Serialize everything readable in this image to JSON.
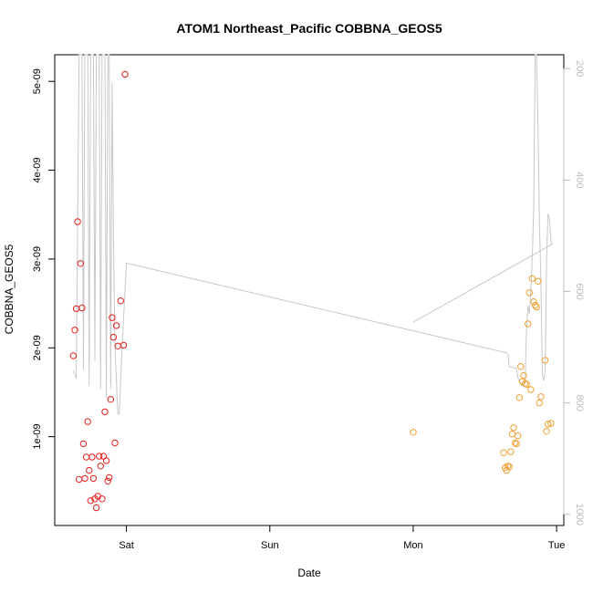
{
  "chart_data": {
    "type": "scatter",
    "title": "ATOM1 Northeast_Pacific COBBNA_GEOS5",
    "xlabel": "Date",
    "ylabel": "COBBNA_GEOS5",
    "x_ticks": [
      {
        "label": "Sat",
        "value": 0
      },
      {
        "label": "Sun",
        "value": 1
      },
      {
        "label": "Mon",
        "value": 2
      },
      {
        "label": "Tue",
        "value": 3
      }
    ],
    "xlim": [
      -0.5,
      3.05
    ],
    "ylim": [
      0,
      5.3e-09
    ],
    "y_ticks": [
      {
        "label": "1e-09",
        "value": 1e-09
      },
      {
        "label": "2e-09",
        "value": 2e-09
      },
      {
        "label": "3e-09",
        "value": 3e-09
      },
      {
        "label": "4e-09",
        "value": 4e-09
      },
      {
        "label": "5e-09",
        "value": 5e-09
      }
    ],
    "y2_ticks": [
      {
        "label": "200",
        "value": 200
      },
      {
        "label": "400",
        "value": 400
      },
      {
        "label": "600",
        "value": 600
      },
      {
        "label": "800",
        "value": 800
      },
      {
        "label": "1000",
        "value": 1000
      }
    ],
    "y2lim": [
      1020,
      175
    ],
    "colors": {
      "series_sat": "#e8201d",
      "series_tue": "#f0a030",
      "pressure": "#c8c8c8",
      "right_axis": "#bdbdbd"
    },
    "series": [
      {
        "color": "#e8201d",
        "points": [
          [
            -0.37,
            1.91e-09
          ],
          [
            -0.36,
            2.2e-09
          ],
          [
            -0.35,
            2.44e-09
          ],
          [
            -0.34,
            3.42e-09
          ],
          [
            -0.33,
            5.2e-10
          ],
          [
            -0.32,
            2.95e-09
          ],
          [
            -0.31,
            2.45e-09
          ],
          [
            -0.3,
            9.2e-10
          ],
          [
            -0.29,
            5.3e-10
          ],
          [
            -0.28,
            7.7e-10
          ],
          [
            -0.27,
            1.17e-09
          ],
          [
            -0.26,
            6.2e-10
          ],
          [
            -0.25,
            2.8e-10
          ],
          [
            -0.24,
            7.7e-10
          ],
          [
            -0.23,
            5.3e-10
          ],
          [
            -0.22,
            3e-10
          ],
          [
            -0.21,
            2e-10
          ],
          [
            -0.2,
            3.3e-10
          ],
          [
            -0.19,
            7.8e-10
          ],
          [
            -0.18,
            6.7e-10
          ],
          [
            -0.17,
            3e-10
          ],
          [
            -0.16,
            7.8e-10
          ],
          [
            -0.15,
            1.28e-09
          ],
          [
            -0.14,
            7.3e-10
          ],
          [
            -0.13,
            5e-10
          ],
          [
            -0.12,
            5.4e-10
          ],
          [
            -0.11,
            1.42e-09
          ],
          [
            -0.1,
            2.34e-09
          ],
          [
            -0.09,
            2.12e-09
          ],
          [
            -0.08,
            9.3e-10
          ],
          [
            -0.07,
            2.25e-09
          ],
          [
            -0.06,
            2.02e-09
          ],
          [
            -0.04,
            2.53e-09
          ],
          [
            -0.02,
            2.03e-09
          ],
          [
            -0.01,
            5.08e-09
          ]
        ]
      },
      {
        "color": "#f0a030",
        "points": [
          [
            2.0,
            1.05e-09
          ],
          [
            2.63,
            8.2e-10
          ],
          [
            2.64,
            6.5e-10
          ],
          [
            2.65,
            6.2e-10
          ],
          [
            2.66,
            6.7e-10
          ],
          [
            2.67,
            6.6e-10
          ],
          [
            2.68,
            8.3e-10
          ],
          [
            2.69,
            1.03e-09
          ],
          [
            2.7,
            1.1e-09
          ],
          [
            2.71,
            9.3e-10
          ],
          [
            2.72,
            9.2e-10
          ],
          [
            2.73,
            1.01e-09
          ],
          [
            2.74,
            1.44e-09
          ],
          [
            2.75,
            1.79e-09
          ],
          [
            2.76,
            1.62e-09
          ],
          [
            2.77,
            1.69e-09
          ],
          [
            2.78,
            1.6e-09
          ],
          [
            2.79,
            1.59e-09
          ],
          [
            2.8,
            2.27e-09
          ],
          [
            2.81,
            2.62e-09
          ],
          [
            2.82,
            1.53e-09
          ],
          [
            2.83,
            2.78e-09
          ],
          [
            2.84,
            2.52e-09
          ],
          [
            2.85,
            2.48e-09
          ],
          [
            2.86,
            2.46e-09
          ],
          [
            2.87,
            2.75e-09
          ],
          [
            2.88,
            1.38e-09
          ],
          [
            2.89,
            1.45e-09
          ],
          [
            2.92,
            1.86e-09
          ],
          [
            2.93,
            1.06e-09
          ],
          [
            2.94,
            1.14e-09
          ],
          [
            2.96,
            1.15e-09
          ]
        ]
      }
    ],
    "pressure_line": [
      [
        -0.37,
        742
      ],
      [
        -0.35,
        756
      ],
      [
        -0.33,
        175
      ],
      [
        -0.31,
        175
      ],
      [
        -0.3,
        740
      ],
      [
        -0.29,
        175
      ],
      [
        -0.27,
        175
      ],
      [
        -0.26,
        769
      ],
      [
        -0.25,
        175
      ],
      [
        -0.23,
        175
      ],
      [
        -0.22,
        725
      ],
      [
        -0.21,
        175
      ],
      [
        -0.19,
        175
      ],
      [
        -0.18,
        775
      ],
      [
        -0.17,
        175
      ],
      [
        -0.15,
        175
      ],
      [
        -0.14,
        790
      ],
      [
        -0.13,
        175
      ],
      [
        -0.12,
        175
      ],
      [
        -0.11,
        775
      ],
      [
        -0.1,
        225
      ],
      [
        -0.09,
        500
      ],
      [
        -0.08,
        700
      ],
      [
        -0.07,
        760
      ],
      [
        -0.06,
        820
      ],
      [
        -0.05,
        820
      ],
      [
        -0.04,
        760
      ],
      [
        -0.03,
        700
      ],
      [
        -0.02,
        650
      ],
      [
        0.0,
        549
      ],
      [
        2.65,
        710
      ],
      [
        2.66,
        712
      ],
      [
        2.67,
        735
      ],
      [
        2.72,
        738
      ],
      [
        2.73,
        755
      ],
      [
        2.76,
        770
      ],
      [
        2.78,
        760
      ],
      [
        2.79,
        670
      ],
      [
        2.8,
        625
      ],
      [
        2.81,
        640
      ],
      [
        2.82,
        600
      ],
      [
        2.83,
        540
      ],
      [
        2.84,
        450
      ],
      [
        2.85,
        175
      ],
      [
        2.86,
        175
      ],
      [
        2.87,
        300
      ],
      [
        2.88,
        480
      ],
      [
        2.89,
        580
      ],
      [
        2.9,
        750
      ],
      [
        2.91,
        760
      ],
      [
        2.92,
        740
      ],
      [
        2.93,
        545
      ],
      [
        2.94,
        460
      ],
      [
        2.95,
        470
      ],
      [
        2.96,
        510
      ],
      [
        2.97,
        515
      ],
      [
        2.0,
        655
      ]
    ]
  }
}
